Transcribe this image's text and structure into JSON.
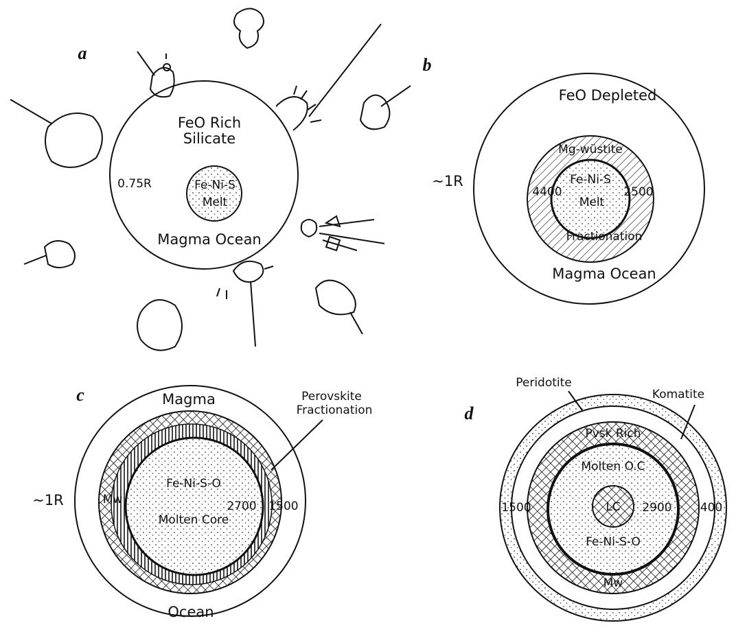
{
  "panels": [
    {
      "label": "a",
      "texts": [
        "FeO Rich",
        "Silicate",
        "0.75R",
        "Fe-Ni-S",
        "Melt",
        "Magma Ocean"
      ]
    },
    {
      "label": "b",
      "texts": [
        "FeO Depleted",
        "Mg-wüstite",
        "~1R",
        "Fe-Ni-S",
        "4400",
        "Melt",
        "2500",
        "Fractionation",
        "Magma Ocean"
      ]
    },
    {
      "label": "c",
      "texts": [
        "Magma",
        "Perovskite",
        "Fractionation",
        "~1R",
        "Mw",
        "Fe-Ni-S-O",
        "2700",
        "1500",
        "Molten Core",
        "Ocean"
      ]
    },
    {
      "label": "d",
      "texts": [
        "Peridotite",
        "Komatite",
        "Pvsk Rich",
        "Molten O.C",
        "1500",
        "2900",
        "400",
        "LC",
        "Fe-Ni-S-O",
        "Mw"
      ]
    }
  ]
}
